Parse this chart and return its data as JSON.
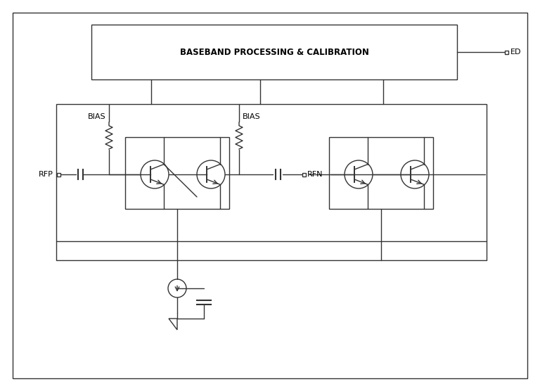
{
  "bg_color": "#ffffff",
  "line_color": "#333333",
  "text_color": "#000000",
  "baseband_text": "BASEBAND PROCESSING & CALIBRATION",
  "ed_label": "ED",
  "rfp_label": "RFP",
  "rfn_label": "RFN",
  "bias1_label": "BIAS",
  "bias2_label": "BIAS"
}
